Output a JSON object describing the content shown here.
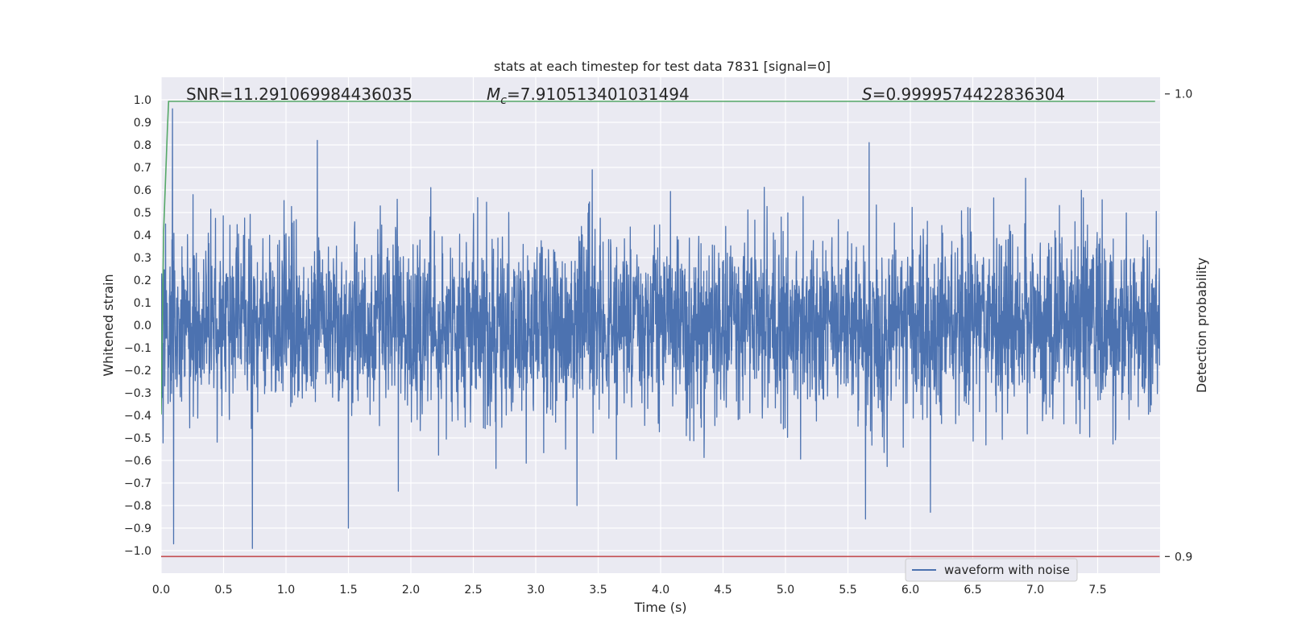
{
  "chart_data": {
    "type": "line",
    "title": "stats at each timestep for test data 7831 [signal=0]",
    "xlabel": "Time (s)",
    "ylabel": "Whitened strain",
    "y2label": "Detection probability",
    "xlim": [
      0.0,
      8.0
    ],
    "ylim": [
      -1.1,
      1.1
    ],
    "y2lim": [
      0.8964,
      1.0036
    ],
    "x_ticks": [
      0.0,
      0.5,
      1.0,
      1.5,
      2.0,
      2.5,
      3.0,
      3.5,
      4.0,
      4.5,
      5.0,
      5.5,
      6.0,
      6.5,
      7.0,
      7.5
    ],
    "x_tick_labels": [
      "0.0",
      "0.5",
      "1.0",
      "1.5",
      "2.0",
      "2.5",
      "3.0",
      "3.5",
      "4.0",
      "4.5",
      "5.0",
      "5.5",
      "6.0",
      "6.5",
      "7.0",
      "7.5"
    ],
    "y_ticks": [
      1.0,
      0.9,
      0.8,
      0.7,
      0.6,
      0.5,
      0.4,
      0.3,
      0.2,
      0.1,
      0.0,
      -0.1,
      -0.2,
      -0.3,
      -0.4,
      -0.5,
      -0.6,
      -0.7,
      -0.8,
      -0.9,
      -1.0
    ],
    "y_tick_labels": [
      "1.0",
      "0.9",
      "0.8",
      "0.7",
      "0.6",
      "0.5",
      "0.4",
      "0.3",
      "0.2",
      "0.1",
      "0.0",
      "−0.1",
      "−0.2",
      "−0.3",
      "−0.4",
      "−0.5",
      "−0.6",
      "−0.7",
      "−0.8",
      "−0.9",
      "−1.0"
    ],
    "y2_ticks": [
      1.0,
      0.9
    ],
    "y2_tick_labels": [
      "1.0",
      "0.9"
    ],
    "grid": true,
    "legend": {
      "position": "lower-right",
      "entries": [
        "waveform with noise"
      ]
    },
    "annotations": {
      "snr": "SNR=11.291069984436035",
      "mc_symbol": "M",
      "mc_sub": "c",
      "mc_value": "=7.910513401031494",
      "s_symbol": "S",
      "s_value": "=0.9999574422836304"
    },
    "series": [
      {
        "name": "waveform with noise",
        "axis": "left",
        "color": "#4c72b0",
        "x_range": [
          0.0,
          7.996
        ],
        "typical_amplitude": 0.4,
        "peaks": [
          {
            "x": 0.09,
            "y": 0.96
          },
          {
            "x": 1.25,
            "y": 0.82
          },
          {
            "x": 5.67,
            "y": 0.81
          },
          {
            "x": 0.73,
            "y": -0.99
          },
          {
            "x": 0.1,
            "y": -0.97
          },
          {
            "x": 1.5,
            "y": -0.9
          },
          {
            "x": 5.64,
            "y": -0.86
          },
          {
            "x": 6.16,
            "y": -0.83
          },
          {
            "x": 3.33,
            "y": -0.8
          }
        ]
      },
      {
        "name": "",
        "axis": "right",
        "color": "#55a868",
        "x": [
          0.0,
          0.02,
          0.05,
          0.06,
          0.07,
          7.96
        ],
        "y": [
          0.9307,
          0.9703,
          0.9922,
          0.9984,
          0.9984,
          0.9984
        ]
      },
      {
        "name": "",
        "axis": "right",
        "color": "#c44e52",
        "x": [
          0.0,
          7.996
        ],
        "y": [
          0.9,
          0.9
        ]
      }
    ]
  }
}
